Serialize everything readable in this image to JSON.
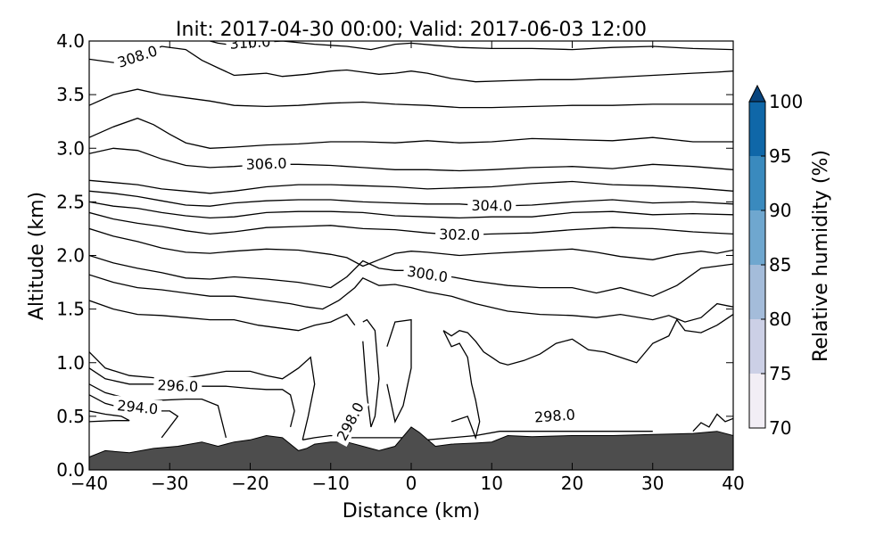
{
  "chart_data": {
    "type": "contour",
    "title": "Init: 2017-04-30 00:00; Valid: 2017-06-03 12:00",
    "xlabel": "Distance (km)",
    "ylabel": "Altitude (km)",
    "xlim": [
      -40,
      40
    ],
    "ylim": [
      0.0,
      4.0
    ],
    "xticks": [
      "−40",
      "−30",
      "−20",
      "−10",
      "0",
      "10",
      "20",
      "30",
      "40"
    ],
    "yticks": [
      "0.0",
      "0.5",
      "1.0",
      "1.5",
      "2.0",
      "2.5",
      "3.0",
      "3.5",
      "4.0"
    ],
    "terrain": {
      "color": "#4d4d4d",
      "x": [
        -40,
        -38,
        -35,
        -32,
        -29,
        -26,
        -24,
        -22,
        -20,
        -18,
        -16,
        -14,
        -13,
        -12,
        -10,
        -8,
        -6,
        -4,
        -2,
        0,
        1,
        3,
        5,
        8,
        10,
        12,
        15,
        20,
        25,
        30,
        35,
        38,
        40
      ],
      "y": [
        0.12,
        0.18,
        0.16,
        0.2,
        0.22,
        0.26,
        0.22,
        0.26,
        0.28,
        0.32,
        0.3,
        0.18,
        0.2,
        0.24,
        0.26,
        0.26,
        0.22,
        0.18,
        0.22,
        0.4,
        0.35,
        0.22,
        0.24,
        0.25,
        0.26,
        0.32,
        0.31,
        0.32,
        0.32,
        0.33,
        0.34,
        0.36,
        0.32
      ]
    },
    "contours": [
      {
        "level": "310.0",
        "x": [
          -25,
          -24,
          -23,
          -20,
          -16,
          -12,
          -8,
          -5,
          -2,
          0,
          3,
          6,
          10,
          15,
          20,
          25,
          30,
          35,
          40
        ],
        "y": [
          4.0,
          3.98,
          3.97,
          3.98,
          4.0,
          3.97,
          3.95,
          3.92,
          3.97,
          3.98,
          3.96,
          3.94,
          3.93,
          3.93,
          3.92,
          3.94,
          3.95,
          3.93,
          3.92
        ]
      },
      {
        "level": "308.0",
        "x": [
          -40,
          -37,
          -34,
          -31,
          -28,
          -26,
          -24,
          -22,
          -20,
          -18,
          -16,
          -13,
          -10,
          -8,
          -6,
          -4,
          -2,
          0,
          2,
          5,
          8,
          12,
          16,
          20,
          25,
          30,
          35,
          38,
          40
        ],
        "y": [
          3.83,
          3.8,
          3.85,
          3.95,
          3.92,
          3.82,
          3.75,
          3.68,
          3.69,
          3.7,
          3.67,
          3.69,
          3.72,
          3.73,
          3.71,
          3.69,
          3.7,
          3.72,
          3.7,
          3.65,
          3.62,
          3.63,
          3.64,
          3.64,
          3.66,
          3.68,
          3.7,
          3.71,
          3.72
        ]
      },
      {
        "level": "",
        "x": [
          -40,
          -37,
          -34,
          -31,
          -28,
          -25,
          -22,
          -18,
          -14,
          -10,
          -6,
          -2,
          2,
          6,
          10,
          15,
          20,
          25,
          30,
          35,
          40
        ],
        "y": [
          3.4,
          3.5,
          3.55,
          3.5,
          3.47,
          3.44,
          3.4,
          3.39,
          3.4,
          3.42,
          3.43,
          3.41,
          3.4,
          3.38,
          3.38,
          3.39,
          3.4,
          3.4,
          3.41,
          3.41,
          3.41
        ]
      },
      {
        "level": "",
        "x": [
          -40,
          -37,
          -34,
          -32,
          -30,
          -28,
          -25,
          -22,
          -18,
          -14,
          -10,
          -6,
          -2,
          2,
          6,
          10,
          15,
          20,
          25,
          30,
          35,
          40
        ],
        "y": [
          3.1,
          3.2,
          3.28,
          3.22,
          3.13,
          3.05,
          3.0,
          3.01,
          3.03,
          3.04,
          3.06,
          3.06,
          3.05,
          3.07,
          3.05,
          3.06,
          3.09,
          3.08,
          3.07,
          3.1,
          3.06,
          3.06
        ]
      },
      {
        "level": "306.0",
        "x": [
          -40,
          -37,
          -34,
          -31,
          -28,
          -25,
          -22,
          -18,
          -14,
          -10,
          -6,
          -2,
          2,
          6,
          10,
          15,
          20,
          25,
          30,
          35,
          40
        ],
        "y": [
          2.95,
          3.0,
          2.98,
          2.9,
          2.84,
          2.82,
          2.83,
          2.85,
          2.85,
          2.84,
          2.82,
          2.8,
          2.8,
          2.79,
          2.8,
          2.82,
          2.83,
          2.81,
          2.85,
          2.83,
          2.8
        ]
      },
      {
        "level": "",
        "x": [
          -40,
          -37,
          -34,
          -31,
          -28,
          -25,
          -22,
          -18,
          -14,
          -10,
          -6,
          -2,
          2,
          6,
          10,
          15,
          20,
          25,
          30,
          35,
          40
        ],
        "y": [
          2.7,
          2.68,
          2.66,
          2.62,
          2.6,
          2.58,
          2.6,
          2.64,
          2.66,
          2.66,
          2.65,
          2.64,
          2.62,
          2.63,
          2.64,
          2.67,
          2.69,
          2.66,
          2.65,
          2.63,
          2.6
        ]
      },
      {
        "level": "304.0",
        "x": [
          -40,
          -37,
          -34,
          -31,
          -28,
          -25,
          -22,
          -18,
          -14,
          -10,
          -6,
          -2,
          2,
          6,
          10,
          15,
          20,
          25,
          30,
          35,
          40
        ],
        "y": [
          2.6,
          2.58,
          2.55,
          2.51,
          2.47,
          2.46,
          2.49,
          2.51,
          2.52,
          2.52,
          2.5,
          2.49,
          2.48,
          2.48,
          2.46,
          2.47,
          2.5,
          2.52,
          2.49,
          2.5,
          2.48
        ]
      },
      {
        "level": "",
        "x": [
          -40,
          -37,
          -34,
          -31,
          -28,
          -25,
          -22,
          -18,
          -14,
          -10,
          -6,
          -2,
          2,
          6,
          10,
          15,
          20,
          25,
          30,
          35,
          40
        ],
        "y": [
          2.5,
          2.46,
          2.44,
          2.4,
          2.37,
          2.35,
          2.36,
          2.4,
          2.41,
          2.41,
          2.4,
          2.37,
          2.36,
          2.35,
          2.36,
          2.36,
          2.4,
          2.41,
          2.38,
          2.39,
          2.38
        ]
      },
      {
        "level": "302.0",
        "x": [
          -40,
          -37,
          -34,
          -31,
          -28,
          -25,
          -22,
          -18,
          -14,
          -10,
          -6,
          -2,
          2,
          6,
          10,
          15,
          20,
          25,
          30,
          35,
          40
        ],
        "y": [
          2.4,
          2.34,
          2.3,
          2.27,
          2.23,
          2.2,
          2.22,
          2.26,
          2.27,
          2.28,
          2.25,
          2.24,
          2.21,
          2.19,
          2.2,
          2.21,
          2.24,
          2.26,
          2.25,
          2.22,
          2.2
        ]
      },
      {
        "level": "",
        "x": [
          -40,
          -37,
          -34,
          -31,
          -28,
          -25,
          -22,
          -18,
          -14,
          -10,
          -8,
          -6,
          -4,
          -2,
          0,
          2,
          6,
          10,
          15,
          20,
          23,
          26,
          30,
          33,
          36,
          38,
          40
        ],
        "y": [
          2.25,
          2.18,
          2.13,
          2.07,
          2.03,
          2.02,
          2.04,
          2.06,
          2.05,
          2.01,
          1.98,
          1.9,
          1.96,
          2.02,
          2.04,
          2.03,
          2.0,
          2.02,
          2.04,
          2.06,
          2.03,
          1.99,
          1.96,
          2.01,
          2.04,
          2.02,
          2.05
        ]
      },
      {
        "level": "300.0",
        "x": [
          -40,
          -37,
          -34,
          -31,
          -28,
          -25,
          -22,
          -18,
          -14,
          -10,
          -8,
          -6,
          -4,
          -2,
          0,
          2,
          5,
          8,
          12,
          16,
          20,
          23,
          26,
          30,
          33,
          36,
          38,
          40
        ],
        "y": [
          2.0,
          1.93,
          1.88,
          1.84,
          1.79,
          1.78,
          1.8,
          1.78,
          1.75,
          1.7,
          1.8,
          1.95,
          1.88,
          1.86,
          1.86,
          1.82,
          1.8,
          1.76,
          1.72,
          1.7,
          1.7,
          1.65,
          1.7,
          1.62,
          1.72,
          1.88,
          1.9,
          1.92
        ]
      },
      {
        "level": "",
        "x": [
          -40,
          -37,
          -34,
          -31,
          -28,
          -25,
          -22,
          -18,
          -15,
          -13,
          -11,
          -9,
          -7,
          -6,
          -4,
          -2,
          0,
          2,
          5,
          8,
          12,
          16,
          20,
          23,
          26,
          30,
          32,
          34,
          36,
          38,
          40
        ],
        "y": [
          1.82,
          1.75,
          1.7,
          1.68,
          1.65,
          1.62,
          1.62,
          1.58,
          1.55,
          1.52,
          1.5,
          1.58,
          1.7,
          1.79,
          1.72,
          1.73,
          1.7,
          1.66,
          1.62,
          1.55,
          1.48,
          1.45,
          1.44,
          1.42,
          1.45,
          1.4,
          1.44,
          1.38,
          1.42,
          1.55,
          1.52
        ]
      },
      {
        "level": "",
        "x": [
          -40,
          -37,
          -34,
          -31,
          -28,
          -25,
          -22,
          -19,
          -16,
          -14,
          -12,
          -10,
          -8,
          -7
        ],
        "y": [
          1.58,
          1.5,
          1.45,
          1.44,
          1.42,
          1.4,
          1.4,
          1.35,
          1.32,
          1.3,
          1.35,
          1.38,
          1.45,
          1.35
        ]
      },
      {
        "level": "",
        "x": [
          4,
          5,
          6,
          7,
          8,
          9,
          10,
          11,
          12,
          14,
          16,
          18,
          20,
          22,
          24,
          26,
          28,
          30,
          32,
          33,
          34,
          36,
          38,
          40
        ],
        "y": [
          1.3,
          1.25,
          1.3,
          1.28,
          1.2,
          1.1,
          1.05,
          1.0,
          0.98,
          1.02,
          1.08,
          1.18,
          1.22,
          1.12,
          1.1,
          1.05,
          1.0,
          1.18,
          1.25,
          1.4,
          1.3,
          1.28,
          1.35,
          1.45
        ]
      },
      {
        "level": "",
        "x": [
          -40,
          -38,
          -35,
          -32,
          -29,
          -26,
          -23,
          -20,
          -18,
          -16,
          -14,
          -12.5,
          -12,
          -12.8,
          -13.5
        ],
        "y": [
          1.1,
          0.95,
          0.88,
          0.86,
          0.85,
          0.88,
          0.92,
          0.92,
          0.88,
          0.85,
          0.95,
          1.05,
          0.8,
          0.5,
          0.28
        ]
      },
      {
        "level": "296.0",
        "x": [
          -40,
          -38,
          -35,
          -32,
          -29,
          -26,
          -23,
          -20,
          -18,
          -16,
          -15,
          -14.5,
          -15
        ],
        "y": [
          0.95,
          0.85,
          0.8,
          0.8,
          0.78,
          0.78,
          0.78,
          0.76,
          0.75,
          0.75,
          0.7,
          0.55,
          0.4
        ]
      },
      {
        "level": "",
        "x": [
          -40,
          -38,
          -36,
          -34,
          -31,
          -28,
          -26,
          -24,
          -23
        ],
        "y": [
          0.8,
          0.72,
          0.68,
          0.65,
          0.65,
          0.66,
          0.66,
          0.6,
          0.3
        ]
      },
      {
        "level": "294.0",
        "x": [
          -40,
          -38,
          -36,
          -34,
          -32,
          -30,
          -29,
          -31
        ],
        "y": [
          0.7,
          0.62,
          0.58,
          0.58,
          0.55,
          0.55,
          0.5,
          0.3
        ]
      },
      {
        "level": "",
        "x": [
          -40,
          -38,
          -36,
          -35,
          -37,
          -40
        ],
        "y": [
          0.55,
          0.52,
          0.5,
          0.46,
          0.46,
          0.45
        ]
      },
      {
        "level": "",
        "x": [
          -6,
          -5.5,
          -4.5,
          -4,
          -4.5,
          -5,
          -5.5,
          -6
        ],
        "y": [
          1.38,
          1.4,
          1.3,
          0.85,
          0.5,
          0.4,
          0.7,
          1.2
        ]
      },
      {
        "level": "",
        "x": [
          -3,
          -2,
          0,
          0,
          -1,
          -2,
          -3
        ],
        "y": [
          1.15,
          1.38,
          1.4,
          0.95,
          0.6,
          0.45,
          0.8
        ]
      },
      {
        "level": "",
        "x": [
          4,
          5,
          6,
          7,
          7.5,
          8,
          8.5,
          8,
          7,
          5
        ],
        "y": [
          1.3,
          1.15,
          1.18,
          1.05,
          0.8,
          0.65,
          0.45,
          0.3,
          0.5,
          0.45
        ]
      },
      {
        "level": "298.0",
        "x": [
          -13.5,
          -12,
          -10,
          -8,
          -6,
          -4,
          -2,
          0,
          2,
          5,
          8,
          11,
          13,
          16,
          20,
          24,
          27,
          30
        ],
        "y": [
          0.28,
          0.3,
          0.32,
          0.3,
          0.3,
          0.3,
          0.3,
          0.3,
          0.28,
          0.3,
          0.32,
          0.36,
          0.36,
          0.36,
          0.36,
          0.36,
          0.36,
          0.36
        ]
      },
      {
        "level": "",
        "x": [
          35,
          36,
          37,
          38,
          39,
          40
        ],
        "y": [
          0.36,
          0.44,
          0.4,
          0.52,
          0.45,
          0.48
        ]
      }
    ],
    "colorbar": {
      "label": "Relative humidity (%)",
      "ticks": [
        "70",
        "75",
        "80",
        "85",
        "90",
        "95",
        "100"
      ],
      "colors": [
        "#f2eef5",
        "#ccd0e6",
        "#a4bcda",
        "#6fa7cf",
        "#3a8abe",
        "#0f67a8",
        "#08457e"
      ],
      "extend_color": "#08457e"
    }
  }
}
